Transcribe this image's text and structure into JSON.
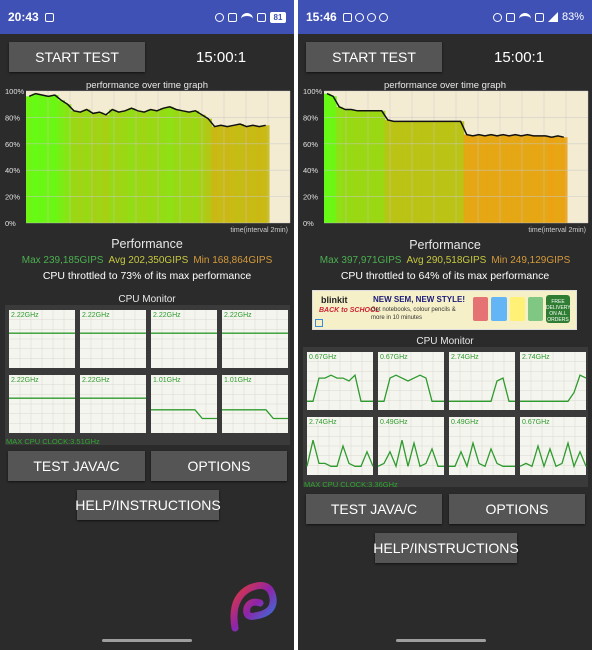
{
  "left": {
    "status": {
      "time": "20:43",
      "right_text": "",
      "battery": "81"
    },
    "start_label": "START TEST",
    "timer": "15:00:1",
    "graph": {
      "title": "performance over time graph",
      "y_ticks": [
        "100%",
        "80%",
        "60%",
        "40%",
        "20%",
        "0%"
      ],
      "x_label": "time(interval 2min)",
      "line": [
        96,
        98,
        97,
        96,
        97,
        93,
        90,
        85,
        84,
        86,
        83,
        84,
        82,
        86,
        84,
        85,
        87,
        85,
        84,
        86,
        85,
        87,
        88,
        86,
        85,
        84,
        85,
        82,
        79,
        73,
        74,
        73,
        74,
        75,
        73,
        74,
        73,
        74
      ]
    },
    "performance_title": "Performance",
    "stats": {
      "max": "Max 239,185GIPS",
      "avg": "Avg 202,350GIPS",
      "min": "Min 168,864GIPS"
    },
    "throttle": "CPU throttled to 73% of its max performance",
    "cpu_title": "CPU Monitor",
    "cores": [
      {
        "label": "2.22GHz",
        "line": [
          60,
          60,
          60,
          60,
          60,
          60,
          60,
          60,
          60,
          60
        ]
      },
      {
        "label": "2.22GHz",
        "line": [
          60,
          60,
          60,
          60,
          60,
          60,
          60,
          60,
          60,
          60
        ]
      },
      {
        "label": "2.22GHz",
        "line": [
          60,
          60,
          60,
          60,
          60,
          60,
          60,
          60,
          60,
          60
        ]
      },
      {
        "label": "2.22GHz",
        "line": [
          60,
          60,
          60,
          60,
          60,
          60,
          60,
          60,
          60,
          60
        ]
      },
      {
        "label": "2.22GHz",
        "line": [
          60,
          60,
          60,
          60,
          60,
          60,
          60,
          60,
          60,
          60
        ]
      },
      {
        "label": "2.22GHz",
        "line": [
          60,
          60,
          60,
          60,
          60,
          60,
          60,
          60,
          60,
          60
        ]
      },
      {
        "label": "1.01GHz",
        "line": [
          40,
          40,
          40,
          40,
          40,
          40,
          40,
          25,
          25,
          25
        ]
      },
      {
        "label": "1.01GHz",
        "line": [
          40,
          40,
          40,
          40,
          40,
          40,
          40,
          25,
          25,
          25
        ]
      }
    ],
    "max_clock": "MAX CPU CLOCK:3.51GHz",
    "java_label": "TEST JAVA/C",
    "options_label": "OPTIONS",
    "help_label": "HELP/INSTRUCTIONS"
  },
  "right": {
    "status": {
      "time": "15:46",
      "right_text": "83%",
      "battery": ""
    },
    "start_label": "START TEST",
    "timer": "15:00:1",
    "graph": {
      "title": "performance over time graph",
      "y_ticks": [
        "100%",
        "80%",
        "60%",
        "40%",
        "20%",
        "0%"
      ],
      "x_label": "time(interval 2min)",
      "line": [
        98,
        96,
        88,
        86,
        86,
        85,
        85,
        85,
        85,
        85,
        78,
        77,
        77,
        77,
        77,
        77,
        77,
        77,
        77,
        77,
        77,
        77,
        77,
        67,
        66,
        67,
        66,
        67,
        66,
        67,
        66,
        67,
        66,
        67,
        66,
        66,
        66,
        65,
        66,
        65
      ]
    },
    "performance_title": "Performance",
    "stats": {
      "max": "Max 397,971GIPS",
      "avg": "Avg 290,518GIPS",
      "min": "Min 249,129GIPS"
    },
    "throttle": "CPU throttled to 64% of its max performance",
    "ad": {
      "brand": "blinkit",
      "tagline": "BACK to SCHOOL",
      "headline": "NEW SEM, NEW STYLE!",
      "sub": "Get notebooks, colour pencils & more in 10 minutes",
      "badge": "FREE DELIVERY ON ALL ORDERS"
    },
    "cpu_title": "CPU Monitor",
    "cores": [
      {
        "label": "0.67GHz",
        "line": [
          15,
          15,
          55,
          55,
          60,
          55,
          55,
          50,
          60,
          15,
          15,
          15
        ]
      },
      {
        "label": "0.67GHz",
        "line": [
          15,
          15,
          55,
          60,
          55,
          50,
          55,
          60,
          55,
          15,
          15,
          15
        ]
      },
      {
        "label": "2.74GHz",
        "line": [
          15,
          15,
          15,
          15,
          15,
          15,
          15,
          15,
          50,
          55,
          15,
          15
        ]
      },
      {
        "label": "2.74GHz",
        "line": [
          15,
          15,
          15,
          15,
          15,
          15,
          15,
          15,
          15,
          30,
          60,
          55
        ]
      },
      {
        "label": "2.74GHz",
        "line": [
          15,
          60,
          20,
          20,
          15,
          15,
          50,
          20,
          15,
          15,
          40,
          15
        ]
      },
      {
        "label": "0.49GHz",
        "line": [
          15,
          20,
          40,
          15,
          60,
          15,
          55,
          15,
          20,
          45,
          15,
          15
        ]
      },
      {
        "label": "0.49GHz",
        "line": [
          15,
          15,
          40,
          15,
          55,
          20,
          15,
          45,
          20,
          15,
          15,
          15
        ]
      },
      {
        "label": "0.67GHz",
        "line": [
          15,
          20,
          15,
          50,
          15,
          45,
          15,
          20,
          55,
          15,
          40,
          15
        ]
      }
    ],
    "max_clock": "MAX CPU CLOCK:3.36GHz",
    "java_label": "TEST JAVA/C",
    "options_label": "OPTIONS",
    "help_label": "HELP/INSTRUCTIONS"
  },
  "colors": {
    "status_bar": "#3f51b5",
    "button": "#555555",
    "background": "#2b2b2b",
    "graph_bg": "#f3ecd2",
    "line": "#111111",
    "core_line": "#2e9b2e"
  }
}
